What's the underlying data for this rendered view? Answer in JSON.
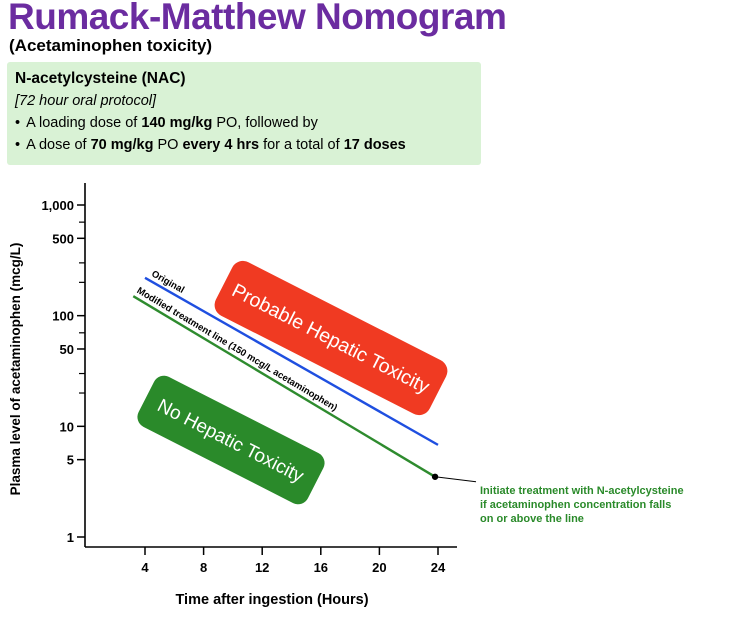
{
  "header": {
    "title": "Rumack-Matthew Nomogram",
    "subtitle": "(Acetaminophen toxicity)"
  },
  "nac": {
    "title": "N-acetylcysteine (NAC)",
    "protocol": "[72 hour oral protocol]",
    "line1": {
      "pre": "A loading dose of ",
      "bold": "140 mg/kg",
      "post": " PO, followed by"
    },
    "line2": {
      "pre": "A dose of ",
      "bold1": "70 mg/kg",
      "mid": " PO ",
      "bold2": "every 4 hrs",
      "mid2": " for a total of ",
      "bold3": "17 doses"
    }
  },
  "chart_data": {
    "type": "line",
    "xlabel": "Time after ingestion (Hours)",
    "ylabel": "Plasma level of acetaminophen (mcg/L)",
    "x_ticks": [
      4,
      8,
      12,
      16,
      20,
      24
    ],
    "y_scale": "log",
    "y_ticks": [
      {
        "value": 1000,
        "label": "1,000"
      },
      {
        "value": 500,
        "label": "500"
      },
      {
        "value": 100,
        "label": "100"
      },
      {
        "value": 50,
        "label": "50"
      },
      {
        "value": 10,
        "label": "10"
      },
      {
        "value": 5,
        "label": "5"
      },
      {
        "value": 1,
        "label": "1"
      }
    ],
    "y_minor_ticks": [
      700,
      300,
      200,
      70,
      30,
      20
    ],
    "series": [
      {
        "name": "Original",
        "color": "#1f4fe0",
        "x": [
          4,
          24
        ],
        "y": [
          220,
          6.8
        ]
      },
      {
        "name": "Modified treatment line (150 mcg/L acetaminophen)",
        "color": "#2e8b2e",
        "x": [
          3.2,
          23.8
        ],
        "y": [
          150,
          3.5
        ]
      }
    ],
    "regions": [
      {
        "label": "Probable Hepatic Toxicity",
        "color": "#f03a22"
      },
      {
        "label": "No Hepatic Toxicity",
        "color": "#2a8a2a"
      }
    ],
    "annotation": {
      "x": 23.8,
      "y": 3.5,
      "lines": [
        "Initiate treatment with N-acetylcysteine",
        "if acetaminophen concentration falls",
        "on or above the line"
      ],
      "color": "#2a8a2a"
    }
  }
}
